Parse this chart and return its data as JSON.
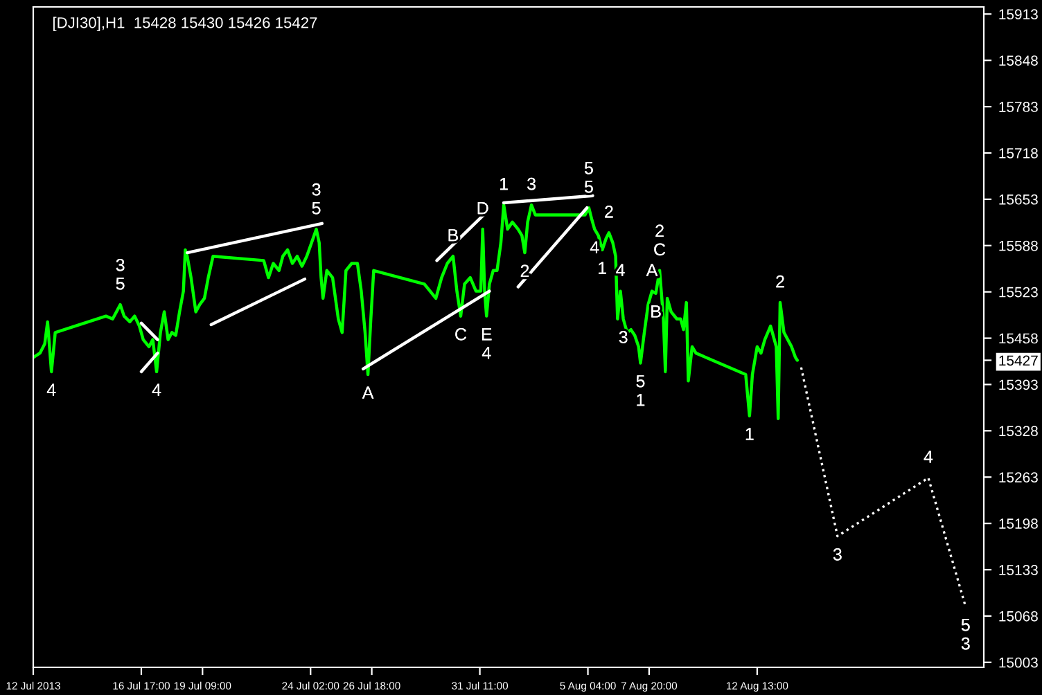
{
  "chart_data": {
    "type": "line",
    "title": "[DJI30],H1  15428 15430 15426 15427",
    "xlim": [
      "2013-07-12T00:00",
      "2013-08-22T10:00"
    ],
    "ylim": [
      14996,
      15923
    ],
    "xticks": [
      {
        "value": "2013-07-12T00:00",
        "label": "12 Jul 2013"
      },
      {
        "value": "2013-07-16T17:00",
        "label": "16 Jul 17:00"
      },
      {
        "value": "2013-07-19T09:00",
        "label": "19 Jul 09:00"
      },
      {
        "value": "2013-07-24T02:00",
        "label": "24 Jul 02:00"
      },
      {
        "value": "2013-07-26T18:00",
        "label": "26 Jul 18:00"
      },
      {
        "value": "2013-07-31T11:00",
        "label": "31 Jul 11:00"
      },
      {
        "value": "2013-08-05T04:00",
        "label": "5 Aug 04:00"
      },
      {
        "value": "2013-08-07T20:00",
        "label": "7 Aug 20:00"
      },
      {
        "value": "2013-08-12T13:00",
        "label": "12 Aug 13:00"
      }
    ],
    "yticks": [
      15003,
      15068,
      15133,
      15198,
      15263,
      15328,
      15393,
      15427,
      15458,
      15523,
      15588,
      15653,
      15718,
      15783,
      15848,
      15913
    ],
    "grid": false,
    "series": [
      {
        "color": "#00ff00",
        "line_style": "solid",
        "x": [
          "2013-07-12T00:00",
          "2013-07-12T07:00",
          "2013-07-12T12:00",
          "2013-07-12T15:00",
          "2013-07-12T17:00",
          "2013-07-12T19:00",
          "2013-07-12T23:00",
          "2013-07-15T04:00",
          "2013-07-15T11:00",
          "2013-07-15T19:00",
          "2013-07-15T23:00",
          "2013-07-16T05:00",
          "2013-07-16T10:00",
          "2013-07-16T15:00",
          "2013-07-16T19:00",
          "2013-07-17T01:00",
          "2013-07-17T05:00",
          "2013-07-17T09:00",
          "2013-07-17T13:00",
          "2013-07-17T17:00",
          "2013-07-17T21:00",
          "2013-07-18T01:00",
          "2013-07-18T05:00",
          "2013-07-18T09:00",
          "2013-07-18T13:00",
          "2013-07-18T15:00",
          "2013-07-18T17:00",
          "2013-07-18T21:00",
          "2013-07-19T02:00",
          "2013-07-19T06:00",
          "2013-07-19T11:00",
          "2013-07-19T15:00",
          "2013-07-19T20:00",
          "2013-07-22T01:00",
          "2013-07-22T06:00",
          "2013-07-22T11:00",
          "2013-07-22T17:00",
          "2013-07-22T21:00",
          "2013-07-23T02:00",
          "2013-07-23T07:00",
          "2013-07-23T12:00",
          "2013-07-23T17:00",
          "2013-07-23T22:00",
          "2013-07-24T03:00",
          "2013-07-24T08:00",
          "2013-07-24T11:00",
          "2013-07-24T13:00",
          "2013-07-24T15:00",
          "2013-07-24T19:00",
          "2013-07-25T01:00",
          "2013-07-25T07:00",
          "2013-07-25T11:00",
          "2013-07-25T15:00",
          "2013-07-25T21:00",
          "2013-07-26T03:00",
          "2013-07-26T07:00",
          "2013-07-26T11:00",
          "2013-07-26T14:00",
          "2013-07-26T17:00",
          "2013-07-26T20:00",
          "2013-07-29T01:00",
          "2013-07-29T07:00",
          "2013-07-29T13:00",
          "2013-07-29T19:00",
          "2013-07-30T01:00",
          "2013-07-30T07:00",
          "2013-07-30T11:00",
          "2013-07-30T15:00",
          "2013-07-30T19:00",
          "2013-07-31T01:00",
          "2013-07-31T07:00",
          "2013-07-31T12:00",
          "2013-07-31T14:00",
          "2013-07-31T16:00",
          "2013-07-31T18:00",
          "2013-07-31T21:00",
          "2013-08-01T01:00",
          "2013-08-01T05:00",
          "2013-08-01T09:00",
          "2013-08-01T12:00",
          "2013-08-01T16:00",
          "2013-08-01T21:00",
          "2013-08-02T03:00",
          "2013-08-02T07:00",
          "2013-08-02T10:00",
          "2013-08-02T13:00",
          "2013-08-02T17:00",
          "2013-08-02T21:00",
          "2013-08-05T01:00",
          "2013-08-05T05:00",
          "2013-08-05T08:00",
          "2013-08-05T11:00",
          "2013-08-05T15:00",
          "2013-08-05T19:00",
          "2013-08-05T23:00",
          "2013-08-06T02:00",
          "2013-08-06T06:00",
          "2013-08-06T09:00",
          "2013-08-06T11:00",
          "2013-08-06T14:00",
          "2013-08-06T17:00",
          "2013-08-06T21:00",
          "2013-08-07T01:00",
          "2013-08-07T05:00",
          "2013-08-07T09:00",
          "2013-08-07T11:00",
          "2013-08-07T15:00",
          "2013-08-07T19:00",
          "2013-08-07T23:00",
          "2013-08-08T03:00",
          "2013-08-08T07:00",
          "2013-08-08T11:00",
          "2013-08-08T13:00",
          "2013-08-08T15:00",
          "2013-08-08T19:00",
          "2013-08-09T01:00",
          "2013-08-09T05:00",
          "2013-08-09T08:00",
          "2013-08-09T11:00",
          "2013-08-09T13:00",
          "2013-08-09T17:00",
          "2013-08-09T21:00",
          "2013-08-12T01:00",
          "2013-08-12T05:00",
          "2013-08-12T08:00",
          "2013-08-12T13:00",
          "2013-08-12T17:00",
          "2013-08-12T21:00",
          "2013-08-13T03:00",
          "2013-08-13T09:00",
          "2013-08-13T11:00",
          "2013-08-13T13:00",
          "2013-08-13T17:00",
          "2013-08-13T21:00",
          "2013-08-14T01:00",
          "2013-08-14T05:00",
          "2013-08-14T07:00"
        ],
        "values": [
          15431,
          15437,
          15450,
          15481,
          15446,
          15411,
          15466,
          15489,
          15485,
          15505,
          15489,
          15481,
          15489,
          15475,
          15456,
          15446,
          15456,
          15411,
          15466,
          15495,
          15456,
          15466,
          15462,
          15495,
          15524,
          15582,
          15573,
          15543,
          15495,
          15505,
          15514,
          15543,
          15573,
          15567,
          15543,
          15563,
          15553,
          15573,
          15582,
          15563,
          15573,
          15559,
          15573,
          15592,
          15611,
          15592,
          15543,
          15514,
          15553,
          15543,
          15485,
          15466,
          15553,
          15563,
          15563,
          15524,
          15466,
          15407,
          15485,
          15553,
          15534,
          15524,
          15514,
          15543,
          15563,
          15573,
          15524,
          15489,
          15534,
          15543,
          15524,
          15524,
          15611,
          15524,
          15489,
          15534,
          15553,
          15553,
          15592,
          15645,
          15611,
          15621,
          15611,
          15602,
          15578,
          15621,
          15645,
          15631,
          15631,
          15641,
          15625,
          15611,
          15602,
          15582,
          15598,
          15606,
          15592,
          15573,
          15485,
          15524,
          15485,
          15466,
          15470,
          15462,
          15446,
          15423,
          15466,
          15505,
          15524,
          15521,
          15553,
          15485,
          15411,
          15514,
          15495,
          15485,
          15485,
          15470,
          15508,
          15398,
          15446,
          15437,
          15407,
          15349,
          15407,
          15446,
          15437,
          15456,
          15475,
          15446,
          15345,
          15508,
          15466,
          15456,
          15446,
          15431,
          15427
        ]
      },
      {
        "color": "#ffffff",
        "line_style": "dotted",
        "x": [
          "2013-08-14T11:00",
          "2013-08-16T01:00",
          "2013-08-20T00:00",
          "2013-08-21T15:00"
        ],
        "values": [
          15417,
          15180,
          15262,
          15081
        ]
      },
      {
        "color": "#ffffff",
        "line_style": "solid",
        "x": [
          "2013-07-16T17:00",
          "2013-07-17T10:00"
        ],
        "values": [
          15479,
          15456
        ]
      },
      {
        "color": "#ffffff",
        "line_style": "solid",
        "x": [
          "2013-07-16T17:00",
          "2013-07-17T10:00"
        ],
        "values": [
          15411,
          15437
        ]
      },
      {
        "color": "#ffffff",
        "line_style": "solid",
        "x": [
          "2013-07-18T17:00",
          "2013-07-24T14:00"
        ],
        "values": [
          15578,
          15619
        ]
      },
      {
        "color": "#ffffff",
        "line_style": "solid",
        "x": [
          "2013-07-19T18:00",
          "2013-07-23T20:00"
        ],
        "values": [
          15477,
          15541
        ]
      },
      {
        "color": "#ffffff",
        "line_style": "solid",
        "x": [
          "2013-07-29T14:00",
          "2013-07-31T18:00"
        ],
        "values": [
          15567,
          15635
        ]
      },
      {
        "color": "#ffffff",
        "line_style": "solid",
        "x": [
          "2013-07-26T09:00",
          "2013-07-31T21:00"
        ],
        "values": [
          15415,
          15524
        ]
      },
      {
        "color": "#ffffff",
        "line_style": "solid",
        "x": [
          "2013-08-01T12:00",
          "2013-08-05T09:00"
        ],
        "values": [
          15648,
          15658
        ]
      },
      {
        "color": "#ffffff",
        "line_style": "solid",
        "x": [
          "2013-08-02T03:00",
          "2013-08-05T03:00"
        ],
        "values": [
          15530,
          15641
        ]
      }
    ],
    "annotations": [
      {
        "text": "4",
        "x": "2013-07-12T19:00",
        "y": 15411
      },
      {
        "text": "3\n5",
        "x": "2013-07-15T19:00",
        "y": 15505
      },
      {
        "text": "4",
        "x": "2013-07-17T09:00",
        "y": 15411
      },
      {
        "text": "3\n5",
        "x": "2013-07-24T08:00",
        "y": 15611
      },
      {
        "text": "A",
        "x": "2013-07-26T14:00",
        "y": 15407
      },
      {
        "text": "B",
        "x": "2013-07-30T07:00",
        "y": 15573
      },
      {
        "text": "D",
        "x": "2013-07-31T14:00",
        "y": 15611
      },
      {
        "text": "C",
        "x": "2013-07-30T15:00",
        "y": 15489
      },
      {
        "text": "E\n4",
        "x": "2013-07-31T18:00",
        "y": 15489
      },
      {
        "text": "1",
        "x": "2013-08-01T12:00",
        "y": 15645
      },
      {
        "text": "3",
        "x": "2013-08-02T17:00",
        "y": 15645
      },
      {
        "text": "5\n5",
        "x": "2013-08-05T05:00",
        "y": 15641
      },
      {
        "text": "2",
        "x": "2013-08-02T10:00",
        "y": 15578
      },
      {
        "text": "4",
        "x": "2013-08-05T11:00",
        "y": 15611
      },
      {
        "text": "2",
        "x": "2013-08-06T02:00",
        "y": 15606
      },
      {
        "text": "1",
        "x": "2013-08-05T19:00",
        "y": 15582
      },
      {
        "text": "4",
        "x": "2013-08-06T14:00",
        "y": 15524
      },
      {
        "text": "3",
        "x": "2013-08-06T17:00",
        "y": 15485
      },
      {
        "text": "5\n1",
        "x": "2013-08-07T11:00",
        "y": 15423
      },
      {
        "text": "A",
        "x": "2013-08-07T23:00",
        "y": 15524
      },
      {
        "text": "B",
        "x": "2013-08-08T03:00",
        "y": 15521
      },
      {
        "text": "2\nC",
        "x": "2013-08-08T07:00",
        "y": 15553
      },
      {
        "text": "1",
        "x": "2013-08-12T05:00",
        "y": 15349
      },
      {
        "text": "2",
        "x": "2013-08-13T13:00",
        "y": 15508
      },
      {
        "text": "3",
        "x": "2013-08-16T01:00",
        "y": 15180
      },
      {
        "text": "4",
        "x": "2013-08-20T00:00",
        "y": 15262
      },
      {
        "text": "5\n3",
        "x": "2013-08-21T15:00",
        "y": 15081
      }
    ]
  }
}
